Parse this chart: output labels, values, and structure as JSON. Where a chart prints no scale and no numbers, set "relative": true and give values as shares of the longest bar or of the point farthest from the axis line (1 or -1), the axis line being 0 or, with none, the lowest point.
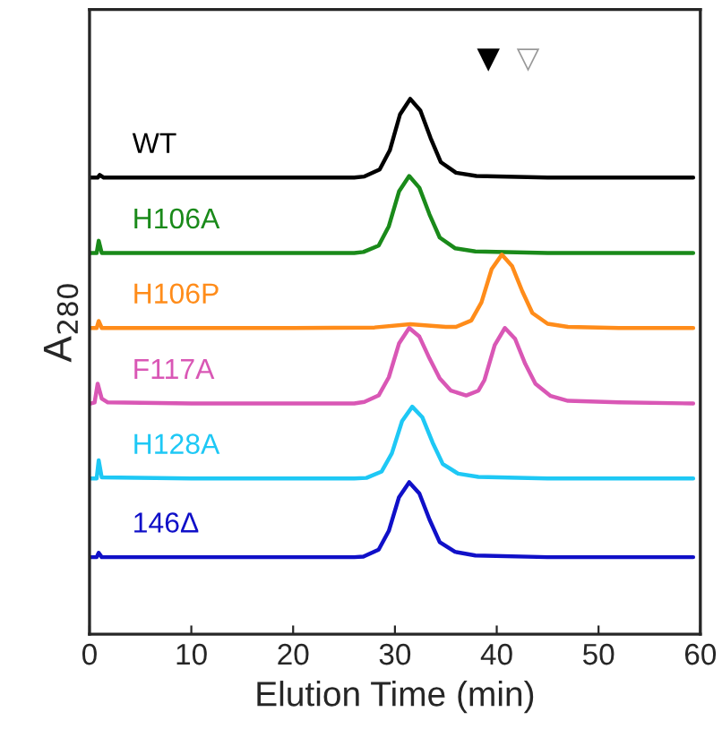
{
  "chart_data": {
    "type": "line",
    "relative": true,
    "xlabel": "Elution Time (min)",
    "ylabel": "A$_{280}$",
    "xlim": [
      0,
      60
    ],
    "xticks": [
      0,
      10,
      20,
      30,
      40,
      50,
      60
    ],
    "grid": false,
    "legend": false,
    "marker": "none",
    "line_style": "solid",
    "annotations": [
      "▼",
      "▽"
    ],
    "series": [
      {
        "name": "WT",
        "color": "#000000",
        "x": [
          0.1,
          0.8,
          1.0,
          1.4,
          10,
          20,
          26,
          27,
          28.5,
          29.5,
          30.5,
          31.5,
          32.5,
          33.5,
          34.5,
          36,
          38,
          45,
          59.3
        ],
        "values": [
          0.853,
          0.853,
          0.858,
          0.853,
          0.853,
          0.853,
          0.853,
          0.855,
          0.868,
          0.904,
          0.971,
          1.0,
          0.978,
          0.927,
          0.882,
          0.862,
          0.856,
          0.853,
          0.853
        ]
      },
      {
        "name": "H106A",
        "color": "#1a8a1a",
        "x": [
          0.1,
          0.7,
          0.9,
          1.2,
          10,
          20,
          26,
          26.9,
          28.4,
          29.4,
          30.4,
          31.4,
          32.4,
          33.4,
          34.4,
          35.9,
          37.9,
          45,
          59.3
        ],
        "values": [
          0.712,
          0.712,
          0.735,
          0.712,
          0.712,
          0.712,
          0.712,
          0.714,
          0.726,
          0.762,
          0.827,
          0.856,
          0.834,
          0.784,
          0.741,
          0.721,
          0.715,
          0.712,
          0.712
        ]
      },
      {
        "name": "H106P",
        "color": "#ff8c1a",
        "x": [
          0.1,
          0.7,
          0.9,
          1.2,
          10,
          20,
          28,
          31.5,
          35,
          36,
          37.5,
          38.5,
          39.5,
          40.5,
          41.5,
          42.5,
          43.5,
          45,
          47,
          52,
          59.3
        ],
        "values": [
          0.572,
          0.572,
          0.585,
          0.572,
          0.572,
          0.572,
          0.573,
          0.579,
          0.574,
          0.574,
          0.586,
          0.62,
          0.682,
          0.709,
          0.688,
          0.641,
          0.6,
          0.58,
          0.574,
          0.572,
          0.572
        ]
      },
      {
        "name": "F117A",
        "color": "#d957b5",
        "x": [
          0.1,
          0.5,
          0.8,
          1.2,
          1.8,
          10,
          20,
          26,
          27,
          28.4,
          29.4,
          30.4,
          31.4,
          32.4,
          33.4,
          34.4,
          35.5,
          37,
          38.2,
          38.8,
          39.8,
          40.8,
          41.8,
          42.8,
          43.8,
          45.3,
          47,
          52,
          59.3
        ],
        "values": [
          0.431,
          0.433,
          0.468,
          0.44,
          0.433,
          0.431,
          0.431,
          0.431,
          0.434,
          0.446,
          0.48,
          0.543,
          0.572,
          0.556,
          0.515,
          0.478,
          0.455,
          0.446,
          0.455,
          0.475,
          0.54,
          0.572,
          0.552,
          0.505,
          0.468,
          0.445,
          0.436,
          0.433,
          0.431
        ]
      },
      {
        "name": "H128A",
        "color": "#1ec8f5",
        "x": [
          0.1,
          0.7,
          0.9,
          1.2,
          10,
          20,
          26,
          27.2,
          28.7,
          29.7,
          30.7,
          31.7,
          32.7,
          33.7,
          34.7,
          36.2,
          38.2,
          45,
          59.3
        ],
        "values": [
          0.291,
          0.291,
          0.325,
          0.293,
          0.291,
          0.291,
          0.291,
          0.292,
          0.304,
          0.338,
          0.398,
          0.425,
          0.405,
          0.358,
          0.318,
          0.3,
          0.294,
          0.291,
          0.291
        ]
      },
      {
        "name": "146Δ",
        "color": "#1010c8",
        "x": [
          0.1,
          0.7,
          0.9,
          1.2,
          10,
          20,
          26,
          26.9,
          28.4,
          29.4,
          30.4,
          31.4,
          32.4,
          33.4,
          34.4,
          35.9,
          37.9,
          45,
          59.3
        ],
        "values": [
          0.144,
          0.144,
          0.152,
          0.144,
          0.144,
          0.144,
          0.144,
          0.145,
          0.158,
          0.193,
          0.256,
          0.284,
          0.263,
          0.214,
          0.172,
          0.154,
          0.147,
          0.144,
          0.144
        ]
      }
    ]
  }
}
